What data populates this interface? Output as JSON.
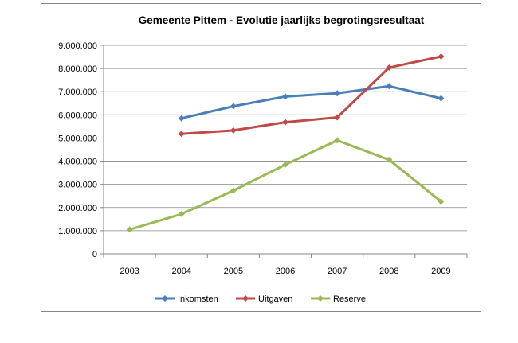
{
  "chart_data": {
    "type": "line",
    "title": "Gemeente Pittem - Evolutie jaarlijks begrotingsresultaat",
    "xlabel": "",
    "ylabel": "",
    "categories": [
      "2003",
      "2004",
      "2005",
      "2006",
      "2007",
      "2008",
      "2009"
    ],
    "ylim": [
      0,
      9000000
    ],
    "yticks": [
      0,
      1000000,
      2000000,
      3000000,
      4000000,
      5000000,
      6000000,
      7000000,
      8000000,
      9000000
    ],
    "ytick_labels": [
      "0",
      "1.000.000",
      "2.000.000",
      "3.000.000",
      "4.000.000",
      "5.000.000",
      "6.000.000",
      "7.000.000",
      "8.000.000",
      "9.000.000"
    ],
    "grid": "horizontal",
    "legend_position": "bottom",
    "series": [
      {
        "name": "Inkomsten",
        "color": "#4A7EBB",
        "marker": "diamond",
        "values": [
          null,
          5850000,
          6370000,
          6790000,
          6930000,
          7240000,
          6710000
        ]
      },
      {
        "name": "Uitgaven",
        "color": "#BE4B48",
        "marker": "diamond",
        "values": [
          null,
          5180000,
          5330000,
          5680000,
          5890000,
          8040000,
          8520000
        ]
      },
      {
        "name": "Reserve",
        "color": "#98B954",
        "marker": "diamond",
        "values": [
          1050000,
          1720000,
          2730000,
          3850000,
          4900000,
          4060000,
          2260000
        ]
      }
    ]
  }
}
